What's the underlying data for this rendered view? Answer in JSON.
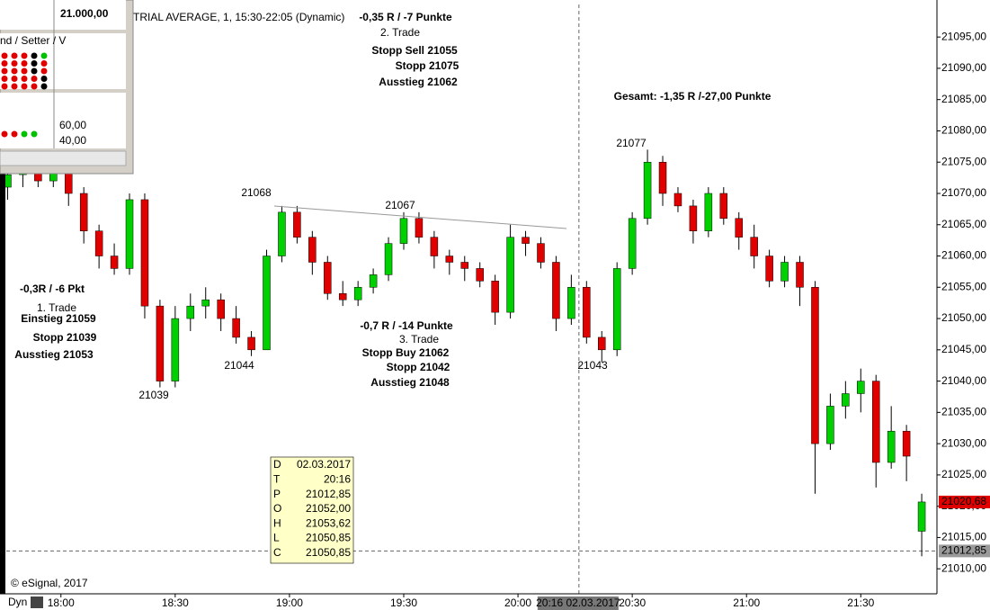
{
  "chart_data": {
    "type": "candlestick",
    "title": "TRIAL AVERAGE, 1, 15:30-22:05 (Dynamic)",
    "x": [
      "17:46",
      "17:50",
      "17:54",
      "17:58",
      "18:02",
      "18:06",
      "18:10",
      "18:14",
      "18:18",
      "18:22",
      "18:26",
      "18:30",
      "18:34",
      "18:38",
      "18:42",
      "18:46",
      "18:50",
      "18:54",
      "18:58",
      "19:02",
      "19:06",
      "19:10",
      "19:14",
      "19:18",
      "19:22",
      "19:26",
      "19:30",
      "19:34",
      "19:38",
      "19:42",
      "19:46",
      "19:50",
      "19:54",
      "19:58",
      "20:02",
      "20:06",
      "20:10",
      "20:14",
      "20:18",
      "20:22",
      "20:26",
      "20:30",
      "20:34",
      "20:38",
      "20:42",
      "20:46",
      "20:50",
      "20:54",
      "20:58",
      "21:02",
      "21:06",
      "21:10",
      "21:14",
      "21:18",
      "21:22",
      "21:26",
      "21:30",
      "21:34",
      "21:38",
      "21:42",
      "21:46"
    ],
    "open": [
      21071,
      21073,
      21074,
      21072,
      21074,
      21070,
      21064,
      21060,
      21058,
      21069,
      21052,
      21040,
      21050,
      21052,
      21053,
      21050,
      21047,
      21045,
      21060,
      21067,
      21063,
      21059,
      21054,
      21053,
      21055,
      21057,
      21062,
      21066,
      21063,
      21060,
      21059,
      21058,
      21056,
      21051,
      21063,
      21062,
      21059,
      21050,
      21055,
      21047,
      21045,
      21058,
      21066,
      21075,
      21070,
      21068,
      21064,
      21070,
      21066,
      21063,
      21060,
      21056,
      21059,
      21055,
      21030,
      21036,
      21038,
      21040,
      21027,
      21032,
      21016
    ],
    "high": [
      21075,
      21076,
      21075,
      21076,
      21075,
      21071,
      21065,
      21062,
      21070,
      21070,
      21053,
      21052,
      21054,
      21055,
      21054,
      21052,
      21048,
      21061,
      21068,
      21068,
      21064,
      21060,
      21056,
      21056,
      21058,
      21063,
      21067,
      21067,
      21064,
      21061,
      21060,
      21059,
      21057,
      21065,
      21064,
      21063,
      21060,
      21057,
      21056,
      21048,
      21059,
      21067,
      21077,
      21076,
      21071,
      21069,
      21071,
      21071,
      21067,
      21065,
      21061,
      21060,
      21060,
      21056,
      21038,
      21040,
      21042,
      21041,
      21036,
      21033,
      21022
    ],
    "low": [
      21069,
      21071,
      21071,
      21071,
      21068,
      21062,
      21058,
      21057,
      21057,
      21050,
      21039,
      21039,
      21048,
      21050,
      21048,
      21046,
      21044,
      21045,
      21059,
      21062,
      21057,
      21053,
      21052,
      21052,
      21054,
      21056,
      21061,
      21062,
      21058,
      21057,
      21056,
      21055,
      21049,
      21050,
      21060,
      21058,
      21048,
      21049,
      21046,
      21043,
      21044,
      21057,
      21065,
      21068,
      21067,
      21062,
      21063,
      21065,
      21061,
      21058,
      21055,
      21055,
      21052,
      21022,
      21029,
      21034,
      21035,
      21023,
      21026,
      21024,
      21012
    ],
    "close": [
      21073,
      21074,
      21072,
      21074,
      21070,
      21064,
      21060,
      21058,
      21069,
      21052,
      21040,
      21050,
      21052,
      21053,
      21050,
      21047,
      21045,
      21060,
      21067,
      21063,
      21059,
      21054,
      21053,
      21055,
      21057,
      21062,
      21066,
      21063,
      21060,
      21059,
      21058,
      21056,
      21051,
      21063,
      21062,
      21059,
      21050,
      21055,
      21047,
      21045,
      21058,
      21066,
      21075,
      21070,
      21068,
      21064,
      21070,
      21066,
      21063,
      21060,
      21056,
      21059,
      21055,
      21030,
      21036,
      21038,
      21040,
      21027,
      21032,
      21028,
      21020.68
    ],
    "up_color": "#00d000",
    "down_color": "#e00000",
    "xlim": [
      "17:44",
      "21:50"
    ],
    "xticks": [
      "18:00",
      "18:30",
      "19:00",
      "19:30",
      "20:00",
      "20:30",
      "21:00",
      "21:30"
    ],
    "ylim": [
      21006,
      21100.2
    ],
    "yticks": [
      {
        "value": 21010,
        "label": "21010,00"
      },
      {
        "value": 21015,
        "label": "21015,00"
      },
      {
        "value": 21020,
        "label": "21020,00"
      },
      {
        "value": 21025,
        "label": "21025,00"
      },
      {
        "value": 21030,
        "label": "21030,00"
      },
      {
        "value": 21035,
        "label": "21035,00"
      },
      {
        "value": 21040,
        "label": "21040,00"
      },
      {
        "value": 21045,
        "label": "21045,00"
      },
      {
        "value": 21050,
        "label": "21050,00"
      },
      {
        "value": 21055,
        "label": "21055,00"
      },
      {
        "value": 21060,
        "label": "21060,00"
      },
      {
        "value": 21065,
        "label": "21065,00"
      },
      {
        "value": 21070,
        "label": "21070,00"
      },
      {
        "value": 21075,
        "label": "21075,00"
      },
      {
        "value": 21080,
        "label": "21080,00"
      },
      {
        "value": 21085,
        "label": "21085,00"
      },
      {
        "value": 21090,
        "label": "21090,00"
      },
      {
        "value": 21095,
        "label": "21095,00"
      }
    ],
    "last_price": {
      "value": 21020.68,
      "label": "21020,68"
    },
    "crosshair": {
      "price": {
        "value": 21012.85,
        "label": "21012,85"
      },
      "time_label": "20:16 02.03.2017"
    },
    "annotations": [
      {
        "text": "-0,35 R / -7 Punkte",
        "color": "#000000"
      },
      {
        "text": "2. Trade",
        "color": "#000000"
      },
      {
        "text": "Stopp Sell 21055",
        "color": "#e00000"
      },
      {
        "text": "Stopp 21075",
        "color": "#e00000"
      },
      {
        "text": "Ausstieg 21062",
        "color": "#e00000"
      },
      {
        "text": "Gesamt: -1,35 R /-27,00 Punkte",
        "color": "#000000"
      },
      {
        "text": "21077",
        "color": "#000000"
      },
      {
        "text": "21068",
        "color": "#000000"
      },
      {
        "text": "21067",
        "color": "#000000"
      },
      {
        "text": "-0,3R / -6 Pkt",
        "color": "#000000"
      },
      {
        "text": "1. Trade",
        "color": "#000000"
      },
      {
        "text": "Einstieg 21059",
        "color": "#1a9a1a"
      },
      {
        "text": "Stopp 21039",
        "color": "#1a9a1a"
      },
      {
        "text": "Ausstieg 21053",
        "color": "#1a9a1a"
      },
      {
        "text": "21044",
        "color": "#000000"
      },
      {
        "text": "21039",
        "color": "#000000"
      },
      {
        "text": "-0,7 R / -14 Punkte",
        "color": "#000000"
      },
      {
        "text": "3. Trade",
        "color": "#000000"
      },
      {
        "text": "Stopp Buy 21062",
        "color": "#0000e0"
      },
      {
        "text": "Stopp 21042",
        "color": "#0000e0"
      },
      {
        "text": "Ausstieg 21048",
        "color": "#0000e0"
      },
      {
        "text": "21043",
        "color": "#000000"
      }
    ],
    "info_box": {
      "rows": [
        [
          "D",
          "02.03.2017"
        ],
        [
          "T",
          "20:16"
        ],
        [
          "P",
          "21012,85"
        ],
        [
          "O",
          "21052,00"
        ],
        [
          "H",
          "21053,62"
        ],
        [
          "L",
          "21050,85"
        ],
        [
          "C",
          "21050,85"
        ]
      ]
    },
    "copyright": "© eSignal, 2017",
    "dyn": "Dyn"
  },
  "overlay_panel": {
    "price": "21.000,00",
    "label": "nd / Setter / V",
    "upper": "60,00",
    "lower": "40,00"
  }
}
